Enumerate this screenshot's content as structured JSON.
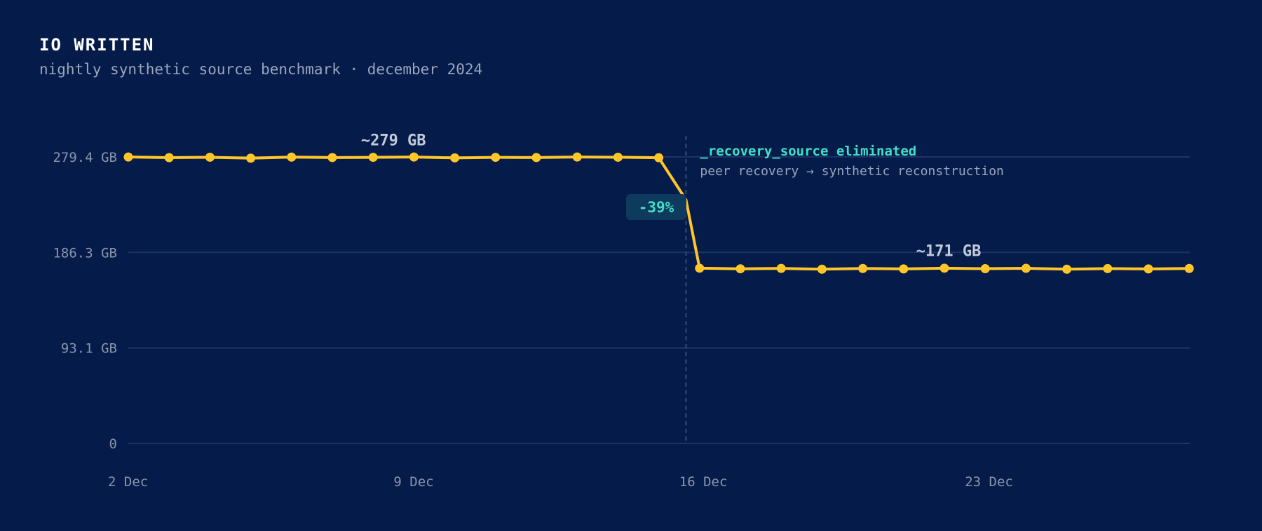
{
  "colors": {
    "background": "#051c4a",
    "line": "#ffc629",
    "grid": "#1b3466",
    "axis_text": "#8a94ab",
    "annotation_accent": "#3fe0c8",
    "annotation_text": "#9aa6bd",
    "badge_bg": "#0e3a5e"
  },
  "chart_data": {
    "type": "line",
    "title": "IO WRITTEN",
    "subtitle": "nightly synthetic source benchmark · december 2024",
    "xlabel": "",
    "ylabel": "",
    "ylim": [
      0,
      279.4
    ],
    "yticks": [
      0,
      93.1,
      186.3,
      279.4
    ],
    "ytick_labels": [
      "0",
      "93.1 GB",
      "186.3 GB",
      "279.4 GB"
    ],
    "xticks": [
      "2024-12-02",
      "2024-12-09",
      "2024-12-16",
      "2024-12-23"
    ],
    "xtick_labels": [
      "2 Dec",
      "9 Dec",
      "16 Dec",
      "23 Dec"
    ],
    "grid": true,
    "series": [
      {
        "points": [
          {
            "x": "2024-12-02",
            "y": 279.3
          },
          {
            "x": "2024-12-03",
            "y": 278.7
          },
          {
            "x": "2024-12-04",
            "y": 279.1
          },
          {
            "x": "2024-12-05",
            "y": 278.2
          },
          {
            "x": "2024-12-06",
            "y": 279.2
          },
          {
            "x": "2024-12-07",
            "y": 278.8
          },
          {
            "x": "2024-12-08",
            "y": 279.0
          },
          {
            "x": "2024-12-09",
            "y": 279.3
          },
          {
            "x": "2024-12-10",
            "y": 278.5
          },
          {
            "x": "2024-12-11",
            "y": 279.0
          },
          {
            "x": "2024-12-12",
            "y": 278.8
          },
          {
            "x": "2024-12-13",
            "y": 279.3
          },
          {
            "x": "2024-12-14",
            "y": 279.1
          },
          {
            "x": "2024-12-15",
            "y": 278.6
          },
          {
            "x": "2024-12-16",
            "y": 170.9
          },
          {
            "x": "2024-12-17",
            "y": 170.3
          },
          {
            "x": "2024-12-18",
            "y": 170.7
          },
          {
            "x": "2024-12-19",
            "y": 169.9
          },
          {
            "x": "2024-12-20",
            "y": 170.6
          },
          {
            "x": "2024-12-21",
            "y": 170.2
          },
          {
            "x": "2024-12-22",
            "y": 170.9
          },
          {
            "x": "2024-12-23",
            "y": 170.4
          },
          {
            "x": "2024-12-24",
            "y": 170.8
          },
          {
            "x": "2024-12-25",
            "y": 169.9
          },
          {
            "x": "2024-12-26",
            "y": 170.5
          },
          {
            "x": "2024-12-27",
            "y": 170.2
          },
          {
            "x": "2024-12-28",
            "y": 170.6
          }
        ]
      }
    ],
    "annotations": {
      "before_level": {
        "label": "~279 GB",
        "x": "2024-12-08",
        "y": 279
      },
      "after_level": {
        "label": "~171 GB",
        "x": "2024-12-22",
        "y": 171
      },
      "change": {
        "label": "-39%"
      },
      "event": {
        "x": "2024-12-15T16:00",
        "title": "_recovery_source eliminated",
        "detail": "peer recovery → synthetic reconstruction"
      }
    }
  }
}
